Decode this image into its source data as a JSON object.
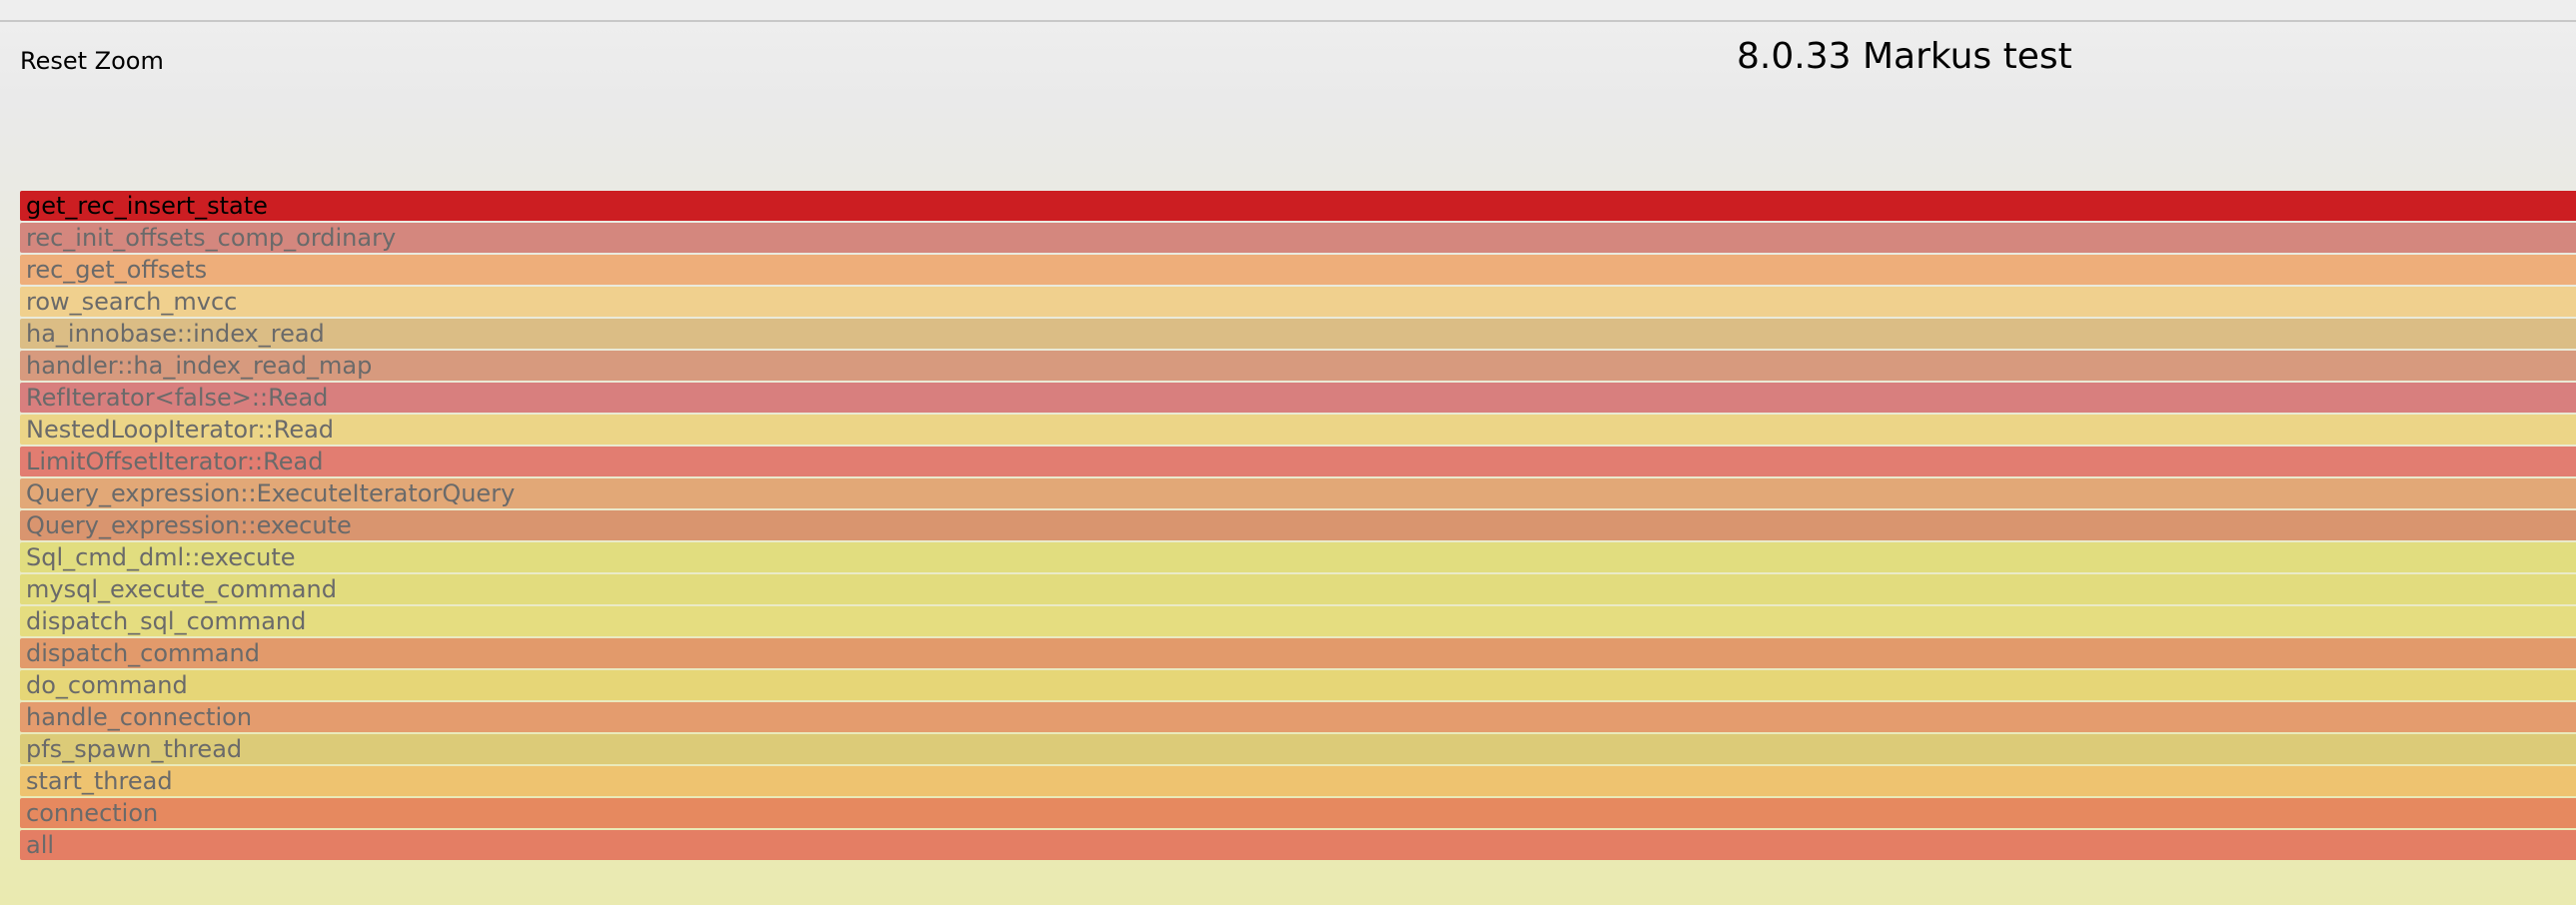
{
  "header": {
    "reset_zoom_label": "Reset Zoom",
    "title": "8.0.33 Markus test"
  },
  "frames": [
    {
      "label": "get_rec_insert_state",
      "color": "#cc1e22",
      "text_color": "#000000"
    },
    {
      "label": "rec_init_offsets_comp_ordinary",
      "color": "#d4877e"
    },
    {
      "label": "rec_get_offsets",
      "color": "#eeae7a"
    },
    {
      "label": "row_search_mvcc",
      "color": "#f0d08e"
    },
    {
      "label": "ha_innobase::index_read",
      "color": "#dbbd85"
    },
    {
      "label": "handler::ha_index_read_map",
      "color": "#d79a7e"
    },
    {
      "label": "RefIterator<false>::Read",
      "color": "#d87f7e"
    },
    {
      "label": "NestedLoopIterator::Read",
      "color": "#ecd587"
    },
    {
      "label": "LimitOffsetIterator::Read",
      "color": "#e27d71"
    },
    {
      "label": "Query_expression::ExecuteIteratorQuery",
      "color": "#e2a877"
    },
    {
      "label": "Query_expression::execute",
      "color": "#d9956f"
    },
    {
      "label": "Sql_cmd_dml::execute",
      "color": "#e1dd7f"
    },
    {
      "label": "mysql_execute_command",
      "color": "#e2dc7e"
    },
    {
      "label": "dispatch_sql_command",
      "color": "#e5dd80"
    },
    {
      "label": "dispatch_command",
      "color": "#e29a6b"
    },
    {
      "label": "do_command",
      "color": "#e6d677"
    },
    {
      "label": "handle_connection",
      "color": "#e49c6e"
    },
    {
      "label": "pfs_spawn_thread",
      "color": "#dccb78"
    },
    {
      "label": "start_thread",
      "color": "#eec370"
    },
    {
      "label": "connection",
      "color": "#e6895f"
    },
    {
      "label": "all",
      "color": "#e47e64"
    }
  ]
}
